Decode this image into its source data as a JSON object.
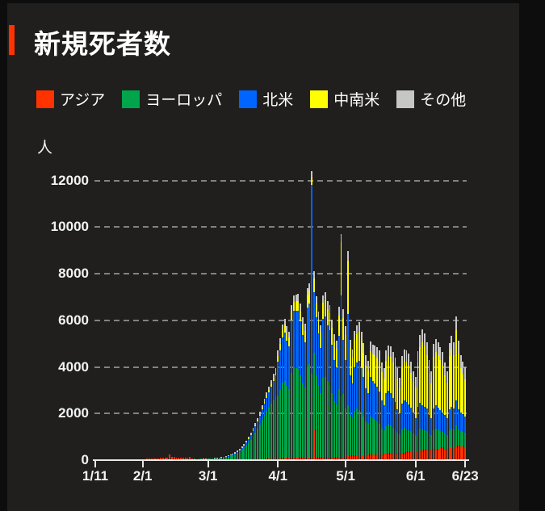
{
  "page": {
    "title": "新規死者数",
    "accent_color": "#ff3200",
    "background": "#0d0d0d",
    "panel_background": "#201f1e"
  },
  "legend": {
    "items": [
      {
        "label": "アジア",
        "color": "#ff3200"
      },
      {
        "label": "ヨーロッパ",
        "color": "#00a44a"
      },
      {
        "label": "北米",
        "color": "#0064ff"
      },
      {
        "label": "中南米",
        "color": "#ffff00"
      },
      {
        "label": "その他",
        "color": "#c6c6c6"
      }
    ]
  },
  "chart_data": {
    "type": "bar",
    "stacked": true,
    "title": "新規死者数",
    "unit_label": "人",
    "ylabel": "人",
    "xlabel": "",
    "grid": "dashed-horizontal",
    "legend_position": "top",
    "start_date": "1/11",
    "end_date": "6/23",
    "x_tick_labels": [
      "1/11",
      "2/1",
      "3/1",
      "4/1",
      "5/1",
      "6/1",
      "6/23"
    ],
    "x_tick_day_index": [
      0,
      21,
      50,
      81,
      111,
      142,
      164
    ],
    "y_ticks": [
      0,
      2000,
      4000,
      6000,
      8000,
      10000,
      12000
    ],
    "ylim": [
      0,
      12800
    ],
    "x_domain_months": [
      {
        "month": 1,
        "from_day": 11,
        "to_day": 31
      },
      {
        "month": 2,
        "from_day": 1,
        "to_day": 29
      },
      {
        "month": 3,
        "from_day": 1,
        "to_day": 31
      },
      {
        "month": 4,
        "from_day": 1,
        "to_day": 30
      },
      {
        "month": 5,
        "from_day": 1,
        "to_day": 31
      },
      {
        "month": 6,
        "from_day": 1,
        "to_day": 23
      }
    ],
    "series": [
      {
        "name": "アジア",
        "color": "#ff3200",
        "values": [
          0,
          0,
          0,
          0,
          0,
          1,
          1,
          1,
          2,
          3,
          4,
          8,
          9,
          16,
          24,
          26,
          26,
          26,
          38,
          43,
          46,
          46,
          45,
          57,
          64,
          66,
          72,
          73,
          86,
          89,
          97,
          108,
          97,
          254,
          143,
          142,
          105,
          98,
          114,
          118,
          109,
          97,
          150,
          71,
          52,
          29,
          44,
          47,
          35,
          29,
          31,
          32,
          36,
          32,
          30,
          28,
          27,
          26,
          25,
          24,
          26,
          27,
          26,
          25,
          24,
          26,
          28,
          30,
          32,
          34,
          36,
          38,
          40,
          43,
          46,
          50,
          54,
          58,
          62,
          66,
          70,
          75,
          78,
          82,
          85,
          88,
          90,
          92,
          95,
          98,
          100,
          103,
          106,
          108,
          110,
          112,
          115,
          1300,
          120,
          122,
          125,
          128,
          130,
          133,
          136,
          138,
          140,
          143,
          146,
          150,
          155,
          160,
          170,
          180,
          190,
          200,
          205,
          210,
          215,
          220,
          225,
          230,
          235,
          240,
          245,
          250,
          255,
          260,
          265,
          270,
          275,
          280,
          285,
          290,
          295,
          300,
          310,
          320,
          330,
          340,
          350,
          355,
          360,
          380,
          400,
          420,
          440,
          460,
          450,
          440,
          470,
          490,
          500,
          510,
          505,
          500,
          490,
          530,
          550,
          560,
          580,
          620,
          600,
          590,
          570
        ]
      },
      {
        "name": "ヨーロッパ",
        "color": "#00a44a",
        "values": [
          0,
          0,
          0,
          0,
          0,
          0,
          0,
          0,
          0,
          0,
          0,
          0,
          0,
          0,
          0,
          0,
          0,
          0,
          0,
          0,
          0,
          0,
          0,
          0,
          0,
          0,
          0,
          0,
          0,
          0,
          0,
          0,
          0,
          0,
          0,
          1,
          0,
          0,
          0,
          1,
          1,
          2,
          2,
          4,
          5,
          8,
          10,
          14,
          17,
          21,
          27,
          35,
          28,
          43,
          48,
          58,
          69,
          86,
          100,
          128,
          155,
          190,
          230,
          280,
          340,
          420,
          510,
          610,
          720,
          850,
          1000,
          1150,
          1300,
          1480,
          1680,
          1880,
          2050,
          2200,
          2350,
          2500,
          2650,
          2700,
          2950,
          3250,
          3300,
          3100,
          2950,
          3650,
          3900,
          3850,
          3800,
          3550,
          3200,
          3000,
          3900,
          4000,
          3600,
          3300,
          3500,
          3100,
          2750,
          3400,
          3450,
          3250,
          3100,
          2750,
          2400,
          2250,
          2900,
          2600,
          2700,
          2050,
          2200,
          1750,
          1600,
          1900,
          2000,
          1950,
          1850,
          1650,
          1450,
          1350,
          1650,
          1550,
          1500,
          1400,
          1300,
          1100,
          1000,
          1200,
          1250,
          1200,
          1100,
          1000,
          900,
          800,
          1000,
          1050,
          1000,
          950,
          900,
          800,
          700,
          900,
          950,
          900,
          850,
          800,
          700,
          650,
          800,
          850,
          800,
          750,
          700,
          650,
          600,
          750,
          800,
          750,
          900,
          700,
          650,
          620,
          600
        ]
      },
      {
        "name": "北米",
        "color": "#0064ff",
        "values": [
          0,
          0,
          0,
          0,
          0,
          0,
          0,
          0,
          0,
          0,
          0,
          0,
          0,
          0,
          0,
          0,
          0,
          0,
          0,
          0,
          0,
          0,
          0,
          0,
          0,
          0,
          0,
          0,
          0,
          0,
          0,
          0,
          0,
          0,
          0,
          0,
          0,
          0,
          0,
          0,
          0,
          0,
          0,
          0,
          0,
          0,
          0,
          0,
          0,
          1,
          1,
          2,
          3,
          4,
          5,
          7,
          9,
          12,
          15,
          19,
          24,
          30,
          38,
          48,
          60,
          75,
          95,
          120,
          150,
          185,
          225,
          270,
          320,
          380,
          440,
          510,
          580,
          660,
          740,
          820,
          900,
          1450,
          1700,
          1950,
          2100,
          1950,
          1850,
          2250,
          2400,
          2450,
          2500,
          2300,
          2050,
          1950,
          2550,
          2600,
          8100,
          2600,
          2500,
          2200,
          1950,
          2550,
          2600,
          2400,
          2350,
          2050,
          1750,
          1600,
          2300,
          4300,
          2300,
          2100,
          3900,
          1700,
          1500,
          1900,
          2000,
          2100,
          1900,
          1700,
          1400,
          1300,
          1700,
          1600,
          1550,
          1500,
          1400,
          1200,
          1100,
          1400,
          1450,
          1400,
          1300,
          1200,
          1000,
          900,
          1100,
          1200,
          1150,
          1100,
          1000,
          900,
          750,
          1000,
          1100,
          1050,
          1000,
          950,
          800,
          700,
          950,
          1000,
          950,
          900,
          850,
          800,
          700,
          900,
          950,
          900,
          1100,
          850,
          800,
          750,
          700
        ]
      },
      {
        "name": "中南米",
        "color": "#ffff00",
        "values": [
          0,
          0,
          0,
          0,
          0,
          0,
          0,
          0,
          0,
          0,
          0,
          0,
          0,
          0,
          0,
          0,
          0,
          0,
          0,
          0,
          0,
          0,
          0,
          0,
          0,
          0,
          0,
          0,
          0,
          0,
          0,
          0,
          0,
          0,
          0,
          0,
          0,
          0,
          0,
          0,
          0,
          0,
          0,
          0,
          0,
          0,
          0,
          0,
          0,
          0,
          0,
          0,
          0,
          0,
          0,
          0,
          1,
          1,
          2,
          2,
          3,
          4,
          5,
          6,
          8,
          10,
          12,
          15,
          18,
          22,
          27,
          33,
          40,
          48,
          57,
          67,
          78,
          90,
          103,
          117,
          132,
          250,
          270,
          290,
          320,
          340,
          360,
          380,
          400,
          420,
          440,
          460,
          480,
          500,
          520,
          550,
          350,
          580,
          600,
          620,
          640,
          660,
          680,
          700,
          720,
          740,
          760,
          780,
          850,
          2300,
          950,
          1050,
          2300,
          1200,
          1100,
          1150,
          1200,
          1250,
          1150,
          1050,
          1000,
          950,
          1100,
          1150,
          1200,
          1250,
          1300,
          1200,
          1150,
          1400,
          1500,
          1550,
          1500,
          1450,
          1300,
          1100,
          1600,
          1700,
          1750,
          1700,
          1500,
          1300,
          1300,
          1900,
          2400,
          2700,
          2600,
          2300,
          1800,
          1500,
          2200,
          2300,
          2250,
          2150,
          2050,
          1700,
          1500,
          2300,
          2450,
          2300,
          3000,
          2400,
          1900,
          1750,
          1600
        ]
      },
      {
        "name": "その他",
        "color": "#c6c6c6",
        "values": [
          0,
          0,
          0,
          0,
          0,
          0,
          0,
          0,
          0,
          0,
          0,
          0,
          0,
          0,
          0,
          0,
          0,
          0,
          0,
          0,
          0,
          0,
          0,
          0,
          0,
          0,
          0,
          0,
          0,
          0,
          0,
          0,
          0,
          0,
          0,
          0,
          0,
          0,
          0,
          2,
          2,
          1,
          3,
          4,
          5,
          6,
          4,
          6,
          5,
          7,
          8,
          10,
          11,
          12,
          14,
          16,
          18,
          21,
          24,
          27,
          30,
          34,
          38,
          43,
          48,
          54,
          60,
          67,
          74,
          82,
          90,
          99,
          108,
          118,
          128,
          139,
          150,
          162,
          174,
          187,
          200,
          225,
          230,
          240,
          250,
          260,
          265,
          270,
          280,
          285,
          290,
          295,
          300,
          305,
          310,
          315,
          250,
          320,
          325,
          330,
          335,
          340,
          345,
          350,
          355,
          360,
          365,
          370,
          375,
          350,
          385,
          380,
          390,
          330,
          360,
          380,
          390,
          400,
          405,
          410,
          415,
          420,
          425,
          430,
          435,
          440,
          445,
          440,
          435,
          450,
          455,
          460,
          465,
          470,
          460,
          450,
          470,
          480,
          485,
          480,
          470,
          460,
          450,
          500,
          520,
          540,
          550,
          560,
          540,
          520,
          560,
          570,
          560,
          550,
          540,
          530,
          520,
          560,
          570,
          560,
          600,
          570,
          550,
          530,
          500
        ]
      }
    ]
  }
}
